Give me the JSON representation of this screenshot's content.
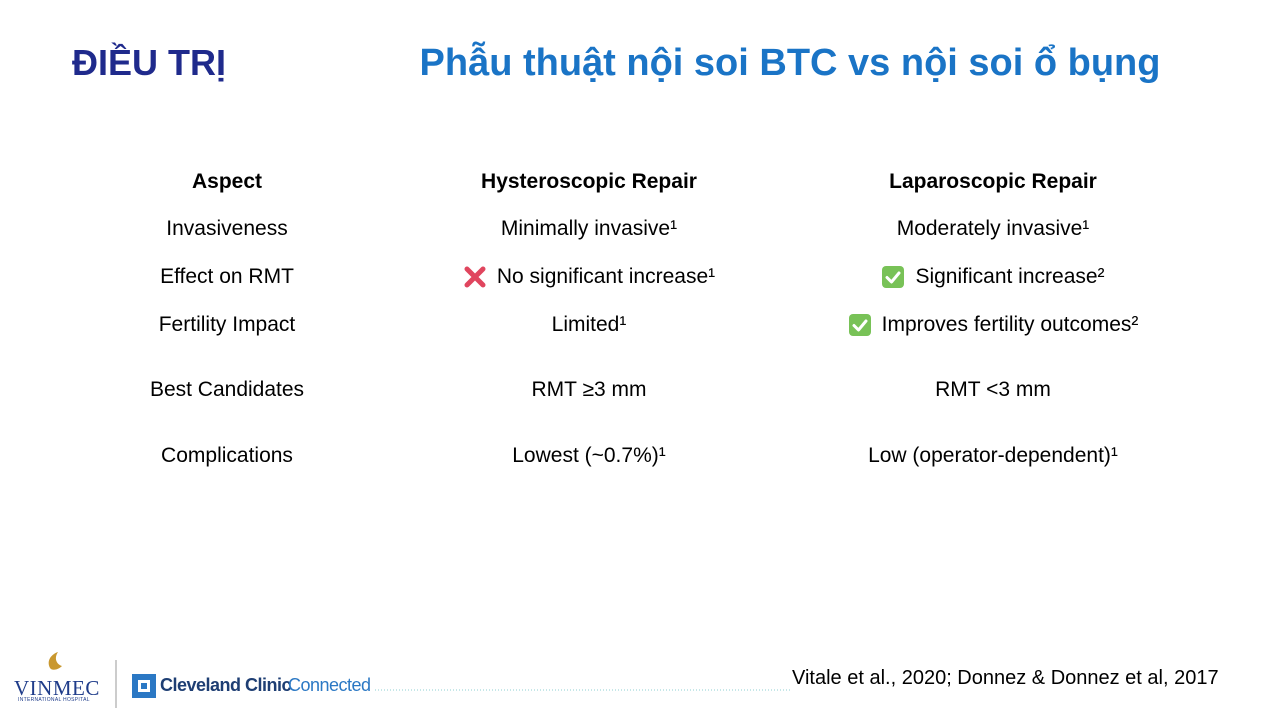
{
  "header": {
    "title": "ĐIỀU TRỊ",
    "subtitle": "Phẫu thuật nội soi BTC vs nội soi ổ bụng"
  },
  "table": {
    "columns": [
      "Aspect",
      "Hysteroscopic Repair",
      "Laparoscopic Repair"
    ],
    "rows": [
      [
        "Invasiveness",
        "Minimally invasive¹",
        "Moderately invasive¹"
      ],
      [
        "Effect on RMT",
        "No significant increase¹",
        "Significant increase²"
      ],
      [
        "Fertility Impact",
        "Limited¹",
        "Improves fertility outcomes²"
      ],
      [
        "Best Candidates",
        "RMT ≥3 mm",
        "RMT <3 mm"
      ],
      [
        "Complications",
        "Lowest (~0.7%)¹",
        "Low (operator-dependent)¹"
      ]
    ]
  },
  "footer": {
    "citation": "Vitale et al., 2020; Donnez & Donnez et al, 2017",
    "logo_vinmec": "VINMEC",
    "logo_vinmec_sub": "INTERNATIONAL HOSPITAL",
    "logo_cleveland": "Cleveland Clinic",
    "logo_connected": "Connected"
  }
}
